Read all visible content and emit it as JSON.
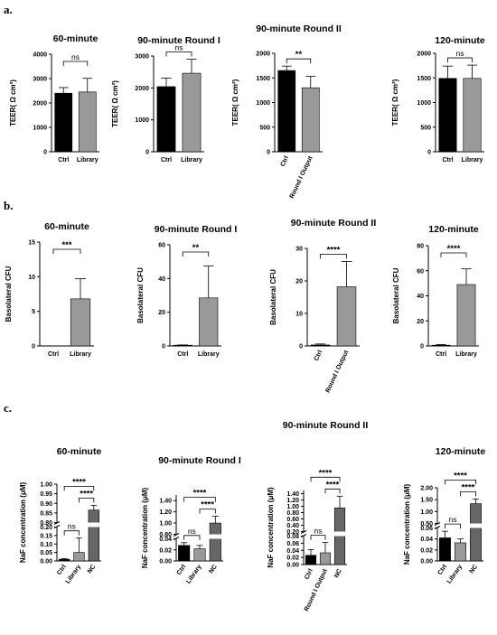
{
  "panel_labels": [
    "a.",
    "b.",
    "c."
  ],
  "chart_data": [
    {
      "type": "bar",
      "title": "60-minute",
      "ylabel": "TEER( Ω cm²)",
      "categories": [
        "Ctrl",
        "Library"
      ],
      "values": [
        2400,
        2450
      ],
      "errors": [
        230,
        560
      ],
      "colors": [
        "#000000",
        "#999999"
      ],
      "ylim": [
        0,
        4000
      ],
      "yticks": [
        0,
        1000,
        2000,
        3000,
        4000
      ],
      "tick_labels": [
        "0",
        "1000",
        "2000",
        "3000",
        "4000"
      ],
      "sig": [
        {
          "a": 0,
          "b": 1,
          "label": "ns"
        }
      ]
    },
    {
      "type": "bar",
      "title": "90-minute Round  I",
      "ylabel": "TEER( Ω cm²)",
      "categories": [
        "Ctrl",
        "Library"
      ],
      "values": [
        2040,
        2460
      ],
      "errors": [
        270,
        440
      ],
      "colors": [
        "#000000",
        "#999999"
      ],
      "ylim": [
        0,
        3000
      ],
      "yticks": [
        0,
        1000,
        2000,
        3000
      ],
      "tick_labels": [
        "0",
        "1000",
        "2000",
        "3000"
      ],
      "sig": [
        {
          "a": 0,
          "b": 1,
          "label": "ns"
        }
      ]
    },
    {
      "type": "bar",
      "title": "90-minute Round  II",
      "ylabel": "TEER( Ω cm²)",
      "categories": [
        "Ctrl",
        "Round I Output"
      ],
      "values": [
        1650,
        1300
      ],
      "errors": [
        90,
        230
      ],
      "colors": [
        "#000000",
        "#999999"
      ],
      "ylim": [
        0,
        2000
      ],
      "yticks": [
        0,
        500,
        1000,
        1500,
        2000
      ],
      "tick_labels": [
        "0",
        "500",
        "1000",
        "1500",
        "2000"
      ],
      "rotate": true,
      "sig": [
        {
          "a": 0,
          "b": 1,
          "label": "**"
        }
      ]
    },
    {
      "type": "bar",
      "title": "120-minute",
      "ylabel": "TEER( Ω cm²)",
      "categories": [
        "Ctrl",
        "Library"
      ],
      "values": [
        1490,
        1490
      ],
      "errors": [
        250,
        270
      ],
      "colors": [
        "#000000",
        "#999999"
      ],
      "ylim": [
        0,
        2000
      ],
      "yticks": [
        0,
        500,
        1000,
        1500,
        2000
      ],
      "tick_labels": [
        "0",
        "500",
        "1000",
        "1500",
        "2000"
      ],
      "sig": [
        {
          "a": 0,
          "b": 1,
          "label": "ns"
        }
      ]
    },
    {
      "type": "bar",
      "title": "60-minute",
      "ylabel": "Basolateral CFU",
      "categories": [
        "Ctrl",
        "Library"
      ],
      "values": [
        0,
        6.8
      ],
      "errors": [
        0,
        2.9
      ],
      "colors": [
        "#000000",
        "#999999"
      ],
      "ylim": [
        0,
        15
      ],
      "yticks": [
        0,
        5,
        10,
        15
      ],
      "tick_labels": [
        "0",
        "5",
        "10",
        "15"
      ],
      "sig": [
        {
          "a": 0,
          "b": 1,
          "label": "***"
        }
      ]
    },
    {
      "type": "bar",
      "title": "90-minute Round I",
      "ylabel": "Basolateral CFU",
      "categories": [
        "Ctrl",
        "Library"
      ],
      "values": [
        0.3,
        28.5
      ],
      "errors": [
        0.3,
        19
      ],
      "colors": [
        "#000000",
        "#999999"
      ],
      "ylim": [
        0,
        60
      ],
      "yticks": [
        0,
        20,
        40,
        60
      ],
      "tick_labels": [
        "0",
        "20",
        "40",
        "60"
      ],
      "sig": [
        {
          "a": 0,
          "b": 1,
          "label": "**"
        }
      ]
    },
    {
      "type": "bar",
      "title": "90-minute Round II",
      "ylabel": "Basolateral CFU",
      "categories": [
        "Ctrl",
        "Round I Output"
      ],
      "values": [
        0.3,
        18.2
      ],
      "errors": [
        0.3,
        7.8
      ],
      "colors": [
        "#000000",
        "#999999"
      ],
      "ylim": [
        0,
        30
      ],
      "yticks": [
        0,
        10,
        20,
        30
      ],
      "tick_labels": [
        "0",
        "10",
        "20",
        "30"
      ],
      "rotate": true,
      "sig": [
        {
          "a": 0,
          "b": 1,
          "label": "****"
        }
      ]
    },
    {
      "type": "bar",
      "title": "120-minute",
      "ylabel": "Basolateral CFU",
      "categories": [
        "Ctrl",
        "Library"
      ],
      "values": [
        0.5,
        49
      ],
      "errors": [
        0.6,
        12.5
      ],
      "colors": [
        "#000000",
        "#999999"
      ],
      "ylim": [
        0,
        80
      ],
      "yticks": [
        0,
        20,
        40,
        60,
        80
      ],
      "tick_labels": [
        "0",
        "20",
        "40",
        "60",
        "80"
      ],
      "sig": [
        {
          "a": 0,
          "b": 1,
          "label": "****"
        }
      ]
    },
    {
      "type": "bar",
      "broken": true,
      "title": "60-minute",
      "ylabel": "NaF concentration  (μM)",
      "categories": [
        "Ctrl",
        "Library",
        "NC"
      ],
      "values": [
        0.01,
        0.05,
        0.865
      ],
      "errors": [
        0.003,
        0.085,
        0.025
      ],
      "colors": [
        "#000000",
        "#999999",
        "#666666"
      ],
      "lower": {
        "range": [
          0,
          0.2
        ],
        "ticks": [
          0,
          0.05,
          0.1,
          0.15,
          0.2
        ],
        "labels": [
          "0.00",
          "0.05",
          "0.10",
          "0.15",
          "0.20"
        ]
      },
      "upper": {
        "range": [
          0.8,
          1.0
        ],
        "ticks": [
          0.8,
          0.85,
          0.9,
          0.95,
          1.0
        ],
        "labels": [
          "0.80",
          "0.85",
          "0.90",
          "0.95",
          "1.00"
        ]
      },
      "sig": [
        {
          "a": 0,
          "b": 1,
          "label": "ns"
        },
        {
          "a": 1,
          "b": 2,
          "label": "****"
        },
        {
          "a": 0,
          "b": 2,
          "label": "****"
        }
      ]
    },
    {
      "type": "bar",
      "broken": true,
      "title": "90-minute Round I",
      "ylabel": "NaF concentration  (μM)",
      "categories": [
        "Ctrl",
        "Library",
        "NC"
      ],
      "values": [
        0.028,
        0.022,
        1.0
      ],
      "errors": [
        0.005,
        0.006,
        0.12
      ],
      "colors": [
        "#000000",
        "#999999",
        "#666666"
      ],
      "lower": {
        "range": [
          0,
          0.04
        ],
        "ticks": [
          0,
          0.02,
          0.04
        ],
        "labels": [
          "0.00",
          "0.02",
          "0.04"
        ]
      },
      "upper": {
        "range": [
          0.8,
          1.5
        ],
        "ticks": [
          0.8,
          1.0,
          1.2,
          1.4
        ],
        "labels": [
          "0.80",
          "1.00",
          "1.20",
          "1.40"
        ]
      },
      "sig": [
        {
          "a": 0,
          "b": 1,
          "label": "ns"
        },
        {
          "a": 1,
          "b": 2,
          "label": "****"
        },
        {
          "a": 0,
          "b": 2,
          "label": "****"
        }
      ]
    },
    {
      "type": "bar",
      "broken": true,
      "title": "90-minute Round II",
      "ylabel": "NaF concentration  (μM)",
      "categories": [
        "Ctrl",
        "Round I Output",
        "NC"
      ],
      "values": [
        0.026,
        0.033,
        0.95
      ],
      "errors": [
        0.016,
        0.029,
        0.37
      ],
      "colors": [
        "#000000",
        "#999999",
        "#666666"
      ],
      "rotate": true,
      "lower": {
        "range": [
          0,
          0.08
        ],
        "ticks": [
          0,
          0.02,
          0.04,
          0.06,
          0.08
        ],
        "labels": [
          "0.00",
          "0.02",
          "0.04",
          "0.06",
          "0.08"
        ]
      },
      "upper": {
        "range": [
          0.2,
          1.5
        ],
        "ticks": [
          0.2,
          0.4,
          0.6,
          0.8,
          1.0,
          1.2,
          1.4
        ],
        "labels": [
          "0.20",
          "0.40",
          "0.60",
          "0.80",
          "1.00",
          "1.20",
          "1.40"
        ]
      },
      "sig": [
        {
          "a": 0,
          "b": 1,
          "label": "ns"
        },
        {
          "a": 1,
          "b": 2,
          "label": "****"
        },
        {
          "a": 0,
          "b": 2,
          "label": "****"
        }
      ]
    },
    {
      "type": "bar",
      "broken": true,
      "title": "120-minute",
      "ylabel": "NaF concentration  (μM)",
      "categories": [
        "Ctrl",
        "Library",
        "NC"
      ],
      "values": [
        0.042,
        0.033,
        1.33
      ],
      "errors": [
        0.012,
        0.007,
        0.2
      ],
      "colors": [
        "#000000",
        "#999999",
        "#666666"
      ],
      "lower": {
        "range": [
          0,
          0.06
        ],
        "ticks": [
          0,
          0.02,
          0.04,
          0.06
        ],
        "labels": [
          "0.00",
          "0.02",
          "0.04",
          "0.06"
        ]
      },
      "upper": {
        "range": [
          0.5,
          2.0
        ],
        "ticks": [
          0.5,
          1.0,
          1.5,
          2.0
        ],
        "labels": [
          "0.50",
          "1.00",
          "1.50",
          "2.00"
        ]
      },
      "sig": [
        {
          "a": 0,
          "b": 1,
          "label": "ns"
        },
        {
          "a": 1,
          "b": 2,
          "label": "****"
        },
        {
          "a": 0,
          "b": 2,
          "label": "****"
        }
      ]
    }
  ]
}
